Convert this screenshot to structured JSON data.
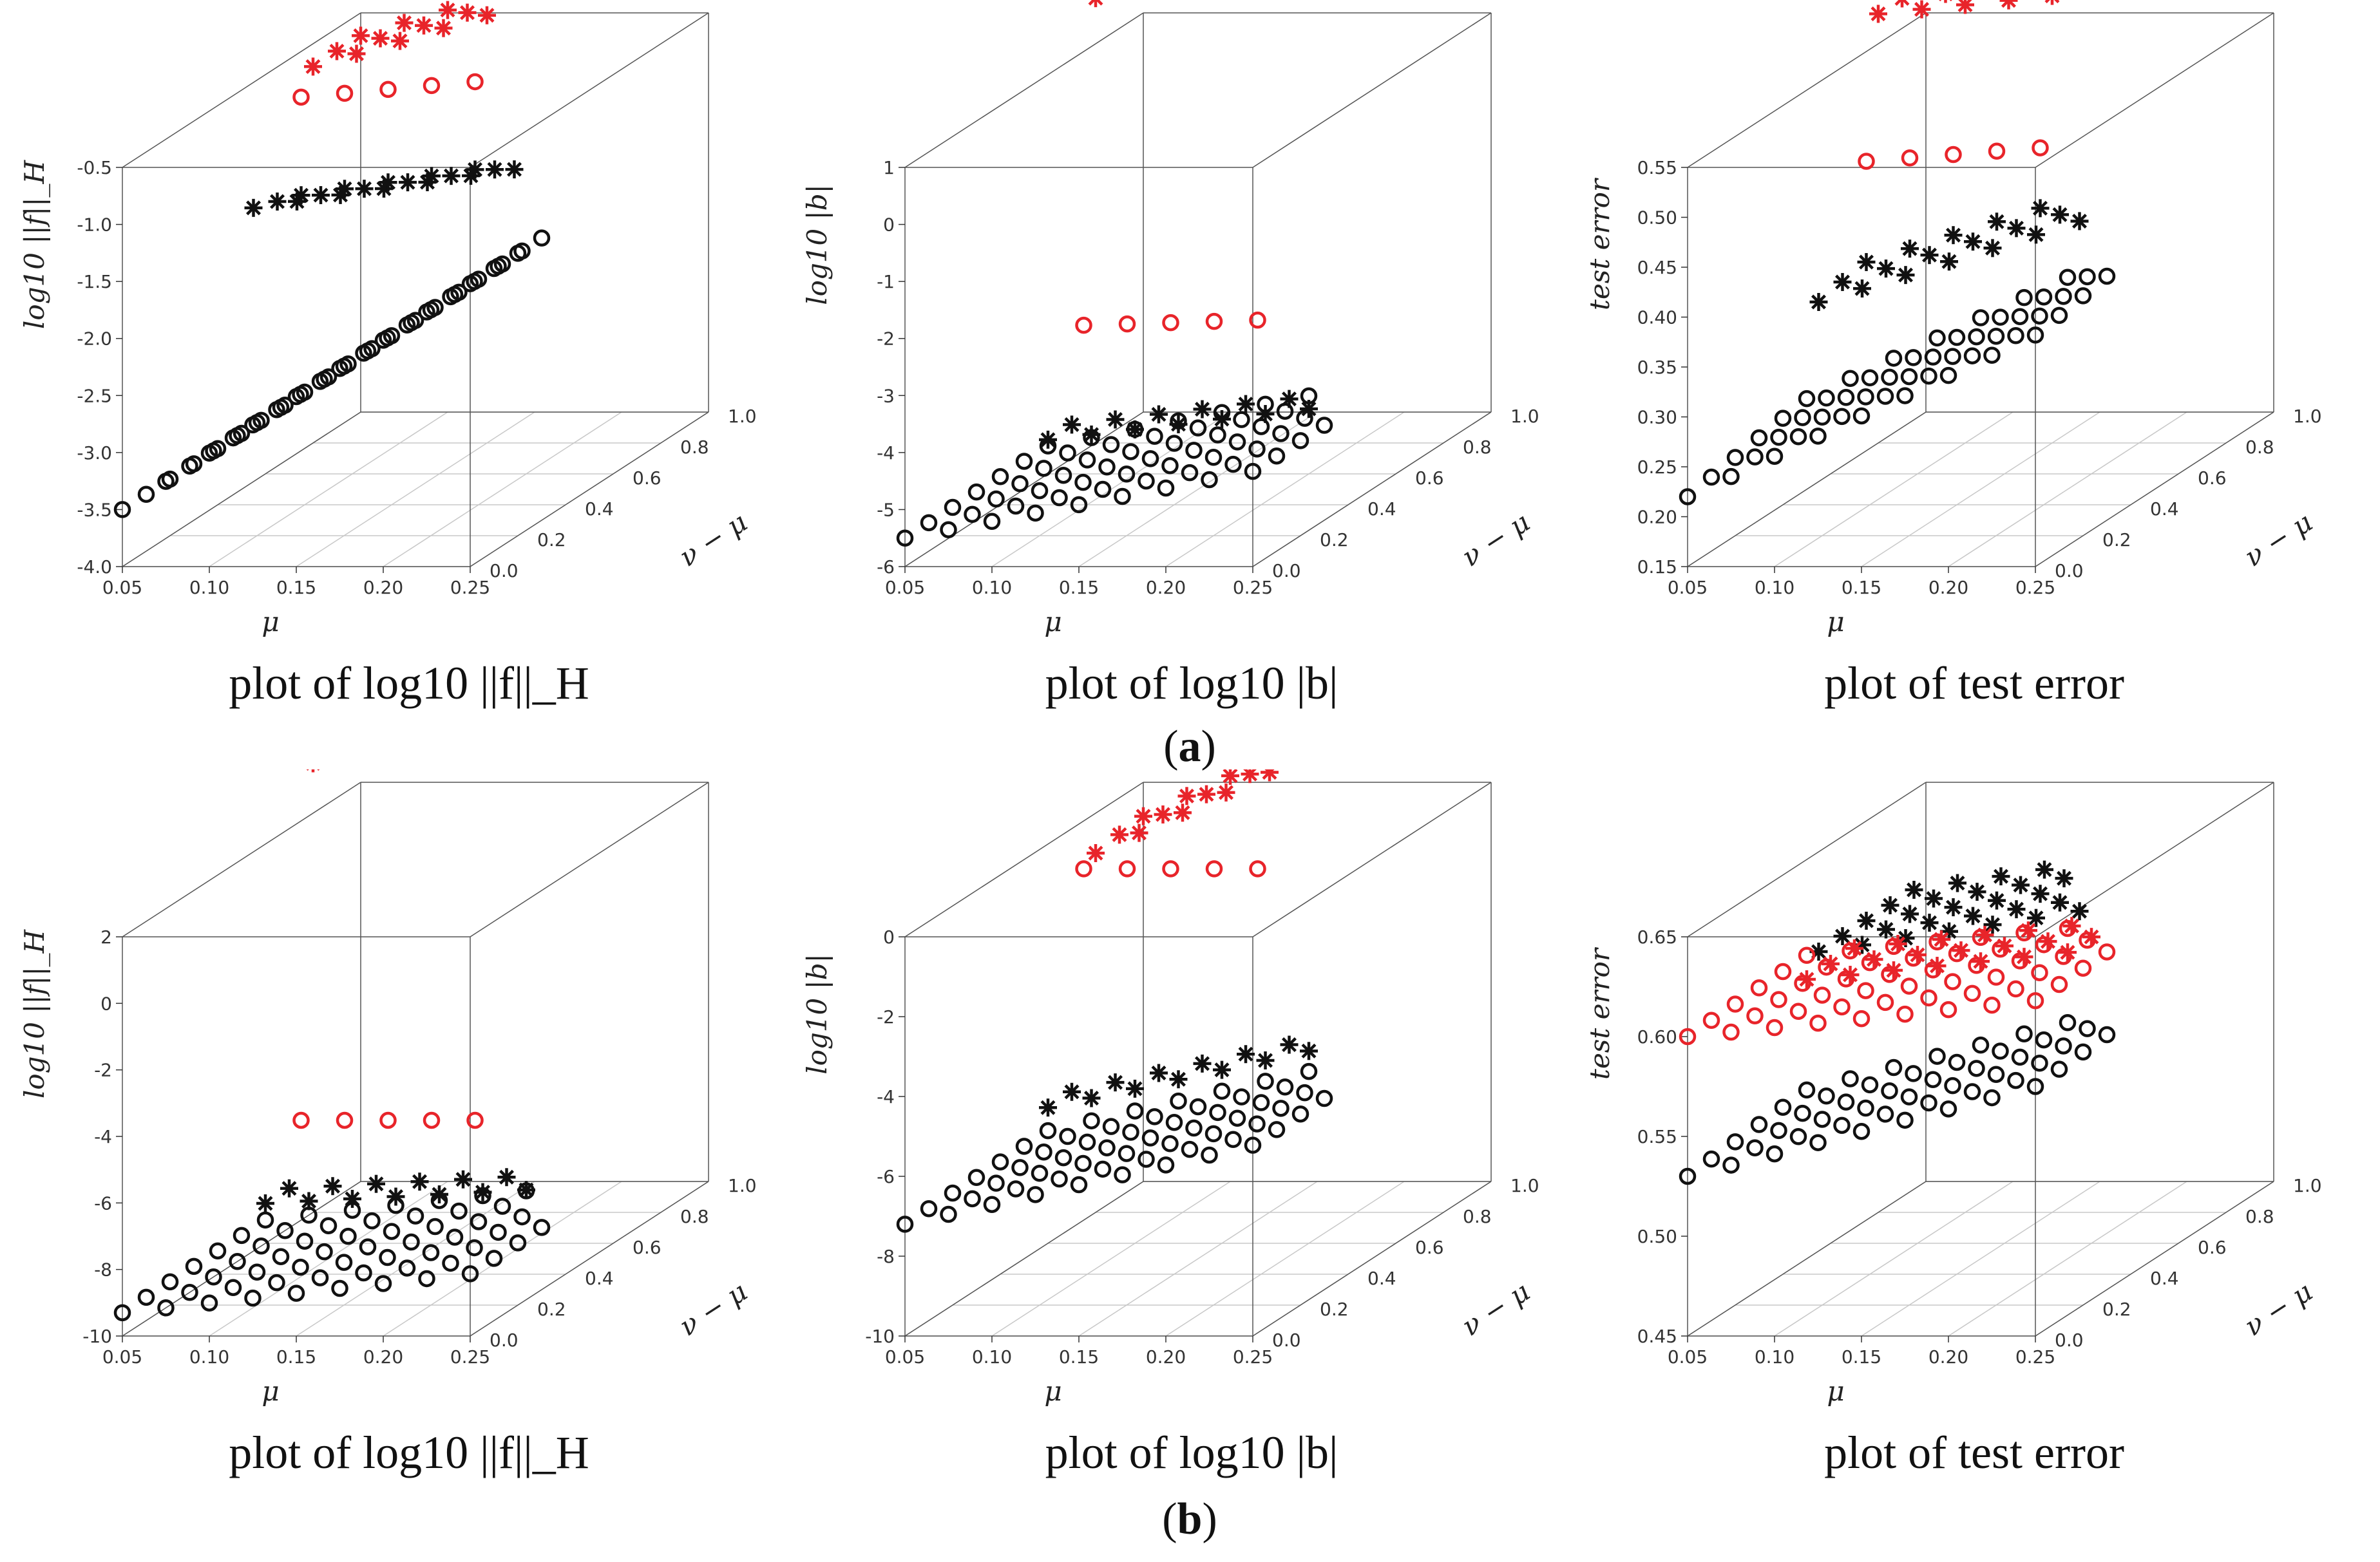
{
  "colors": {
    "red": "#e8242a",
    "black": "#111111",
    "box": "#555555",
    "grid": "#c8c8c8"
  },
  "group_labels": {
    "a": "a",
    "b": "b"
  },
  "chart_data": [
    {
      "id": "a1",
      "type": "scatter3d",
      "caption": "plot of log10 ||f||_H",
      "xlabel": "μ",
      "ylabel": "ν − μ",
      "zlabel": "log10 ||f||_H",
      "xlim": [
        0.05,
        0.25
      ],
      "ylim": [
        0,
        1.0
      ],
      "zlim": [
        -4.0,
        -0.5
      ],
      "xticks": [
        "0.05",
        "0.10",
        "0.15",
        "0.20",
        "0.25"
      ],
      "yticks": [
        "0.0",
        "0.2",
        "0.4",
        "0.6",
        "0.8",
        "1.0"
      ],
      "zticks": [
        "-4.0",
        "-3.5",
        "-3.0",
        "-2.5",
        "-2.0",
        "-1.5",
        "-1.0",
        "-0.5"
      ],
      "surfaces": [
        {
          "name": "black circles",
          "marker": "o",
          "color": "black",
          "nu_min": 0.0,
          "nu_max": 0.55,
          "z_start": -3.5,
          "z_end": -1.3,
          "z_base": -3.6
        },
        {
          "name": "black stars",
          "marker": "*",
          "color": "black",
          "nu_min": 0.55,
          "nu_max": 0.75,
          "z_start": -1.6,
          "z_end": -1.1,
          "z_base": -3.2
        },
        {
          "name": "red circles",
          "marker": "o",
          "color": "red",
          "nu_min": 0.75,
          "nu_max": 0.8,
          "z_start": -0.9,
          "z_end": -0.6,
          "z_base": -0.9
        },
        {
          "name": "red stars",
          "marker": "*",
          "color": "red",
          "nu_min": 0.8,
          "nu_max": 1.0,
          "z_start": -0.7,
          "z_end": 0.3,
          "z_base": -0.7
        }
      ]
    },
    {
      "id": "a2",
      "type": "scatter3d",
      "caption": "plot of log10 |b|",
      "xlabel": "μ",
      "ylabel": "ν − μ",
      "zlabel": "log10 |b|",
      "xlim": [
        0.05,
        0.25
      ],
      "ylim": [
        0,
        1.0
      ],
      "zlim": [
        -6,
        1
      ],
      "xticks": [
        "0.05",
        "0.10",
        "0.15",
        "0.20",
        "0.25"
      ],
      "yticks": [
        "0.0",
        "0.2",
        "0.4",
        "0.6",
        "0.8",
        "1.0"
      ],
      "zticks": [
        "-6",
        "-5",
        "-4",
        "-3",
        "-2",
        "-1",
        "0",
        "1"
      ],
      "surfaces": [
        {
          "name": "black circles",
          "marker": "o",
          "color": "black",
          "nu_min": 0.0,
          "nu_max": 0.6,
          "z_start": -5.5,
          "z_end": -4.2,
          "z_base": -5.6
        },
        {
          "name": "black stars",
          "marker": "*",
          "color": "black",
          "nu_min": 0.6,
          "nu_max": 0.75,
          "z_start": -5.4,
          "z_end": -4.6,
          "z_base": -5.5
        },
        {
          "name": "red circles",
          "marker": "o",
          "color": "red",
          "nu_min": 0.75,
          "nu_max": 0.8,
          "z_start": -3.8,
          "z_end": -3.6,
          "z_base": -3.9
        },
        {
          "name": "red stars",
          "marker": "*",
          "color": "red",
          "nu_min": 0.8,
          "nu_max": 1.0,
          "z_start": 1.8,
          "z_end": 3.0,
          "z_base": 1.8
        }
      ]
    },
    {
      "id": "a3",
      "type": "scatter3d",
      "caption": "plot of test error",
      "xlabel": "μ",
      "ylabel": "ν − μ",
      "zlabel": "test error",
      "xlim": [
        0.05,
        0.25
      ],
      "ylim": [
        0,
        1.0
      ],
      "zlim": [
        0.15,
        0.55
      ],
      "xticks": [
        "0.05",
        "0.10",
        "0.15",
        "0.20",
        "0.25"
      ],
      "yticks": [
        "0.0",
        "0.2",
        "0.4",
        "0.6",
        "0.8",
        "1.0"
      ],
      "zticks": [
        "0.15",
        "0.20",
        "0.25",
        "0.30",
        "0.35",
        "0.40",
        "0.45",
        "0.50",
        "0.55"
      ],
      "surfaces": [
        {
          "name": "black circles",
          "marker": "o",
          "color": "black",
          "nu_min": 0.0,
          "nu_max": 0.55,
          "z_start": 0.22,
          "z_end": 0.4,
          "z_base": 0.45
        },
        {
          "name": "black stars",
          "marker": "*",
          "color": "black",
          "nu_min": 0.55,
          "nu_max": 0.75,
          "z_start": 0.33,
          "z_end": 0.45,
          "z_base": 0.42
        },
        {
          "name": "red circles",
          "marker": "o",
          "color": "red",
          "nu_min": 0.75,
          "nu_max": 0.8,
          "z_start": 0.44,
          "z_end": 0.47,
          "z_base": 0.45
        },
        {
          "name": "red stars",
          "marker": "*",
          "color": "red",
          "nu_min": 0.8,
          "nu_max": 1.0,
          "z_start": 0.58,
          "z_end": 0.62,
          "z_base": 0.58
        }
      ]
    },
    {
      "id": "b1",
      "type": "scatter3d",
      "caption": "plot of log10 ||f||_H",
      "xlabel": "μ",
      "ylabel": "ν − μ",
      "zlabel": "log10 ||f||_H",
      "xlim": [
        0.05,
        0.25
      ],
      "ylim": [
        0,
        1.0
      ],
      "zlim": [
        -10,
        2
      ],
      "xticks": [
        "0.05",
        "0.10",
        "0.15",
        "0.20",
        "0.25"
      ],
      "yticks": [
        "0.0",
        "0.2",
        "0.4",
        "0.6",
        "0.8",
        "1.0"
      ],
      "zticks": [
        "-10",
        "-8",
        "-6",
        "-4",
        "-2",
        "0",
        "2"
      ],
      "surfaces": [
        {
          "name": "black circles",
          "marker": "o",
          "color": "black",
          "nu_min": 0.0,
          "nu_max": 0.6,
          "z_start": -9.3,
          "z_end": -8.0,
          "z_base": -9.3
        },
        {
          "name": "black stars",
          "marker": "*",
          "color": "black",
          "nu_min": 0.6,
          "nu_max": 0.75,
          "z_start": -8.8,
          "z_end": -8.2,
          "z_base": -9.0
        },
        {
          "name": "red circles",
          "marker": "o",
          "color": "red",
          "nu_min": 0.75,
          "nu_max": 0.8,
          "z_start": -7.0,
          "z_end": -7.0,
          "z_base": -7.0
        },
        {
          "name": "red stars",
          "marker": "*",
          "color": "red",
          "nu_min": 0.8,
          "nu_max": 1.0,
          "z_start": 3.5,
          "z_end": 4.5,
          "z_base": 3.5
        }
      ]
    },
    {
      "id": "b2",
      "type": "scatter3d",
      "caption": "plot of log10 |b|",
      "xlabel": "μ",
      "ylabel": "ν − μ",
      "zlabel": "log10 |b|",
      "xlim": [
        0.05,
        0.25
      ],
      "ylim": [
        0,
        1.0
      ],
      "zlim": [
        -10,
        0
      ],
      "xticks": [
        "0.05",
        "0.10",
        "0.15",
        "0.20",
        "0.25"
      ],
      "yticks": [
        "0.0",
        "0.2",
        "0.4",
        "0.6",
        "0.8",
        "1.0"
      ],
      "zticks": [
        "-10",
        "-8",
        "-6",
        "-4",
        "-2",
        "0"
      ],
      "surfaces": [
        {
          "name": "black circles",
          "marker": "o",
          "color": "black",
          "nu_min": 0.0,
          "nu_max": 0.6,
          "z_start": -7.2,
          "z_end": -5.0,
          "z_base": -7.0
        },
        {
          "name": "black stars",
          "marker": "*",
          "color": "black",
          "nu_min": 0.6,
          "nu_max": 0.75,
          "z_start": -6.6,
          "z_end": -4.5,
          "z_base": -6.5
        },
        {
          "name": "red circles",
          "marker": "o",
          "color": "red",
          "nu_min": 0.75,
          "nu_max": 0.8,
          "z_start": -1.2,
          "z_end": -1.2,
          "z_base": -1.2
        },
        {
          "name": "red stars",
          "marker": "*",
          "color": "red",
          "nu_min": 0.8,
          "nu_max": 1.0,
          "z_start": -1.0,
          "z_end": 3.5,
          "z_base": 0.5
        }
      ]
    },
    {
      "id": "b3",
      "type": "scatter3d",
      "caption": "plot of test error",
      "xlabel": "μ",
      "ylabel": "ν − μ",
      "zlabel": "test error",
      "xlim": [
        0.05,
        0.25
      ],
      "ylim": [
        0,
        1.0
      ],
      "zlim": [
        0.45,
        0.65
      ],
      "xticks": [
        "0.05",
        "0.10",
        "0.15",
        "0.20",
        "0.25"
      ],
      "yticks": [
        "0.0",
        "0.2",
        "0.4",
        "0.6",
        "0.8",
        "1.0"
      ],
      "zticks": [
        "0.45",
        "0.50",
        "0.55",
        "0.60",
        "0.65"
      ],
      "surfaces": [
        {
          "name": "black circles",
          "marker": "o",
          "color": "black",
          "nu_min": 0.0,
          "nu_max": 0.55,
          "z_start": 0.53,
          "z_end": 0.58,
          "z_base": 0.58
        },
        {
          "name": "black stars",
          "marker": "*",
          "color": "black",
          "nu_min": 0.55,
          "nu_max": 1.0,
          "z_start": 0.6,
          "z_end": 0.63,
          "z_base": 0.6
        },
        {
          "name": "red circles",
          "marker": "o",
          "color": "red",
          "nu_min": 0.0,
          "nu_max": 0.5,
          "z_start": 0.6,
          "z_end": 0.62,
          "z_base": 0.62
        },
        {
          "name": "red stars",
          "marker": "*",
          "color": "red",
          "nu_min": 0.5,
          "nu_max": 0.7,
          "z_start": 0.59,
          "z_end": 0.61,
          "z_base": 0.59
        }
      ]
    }
  ]
}
